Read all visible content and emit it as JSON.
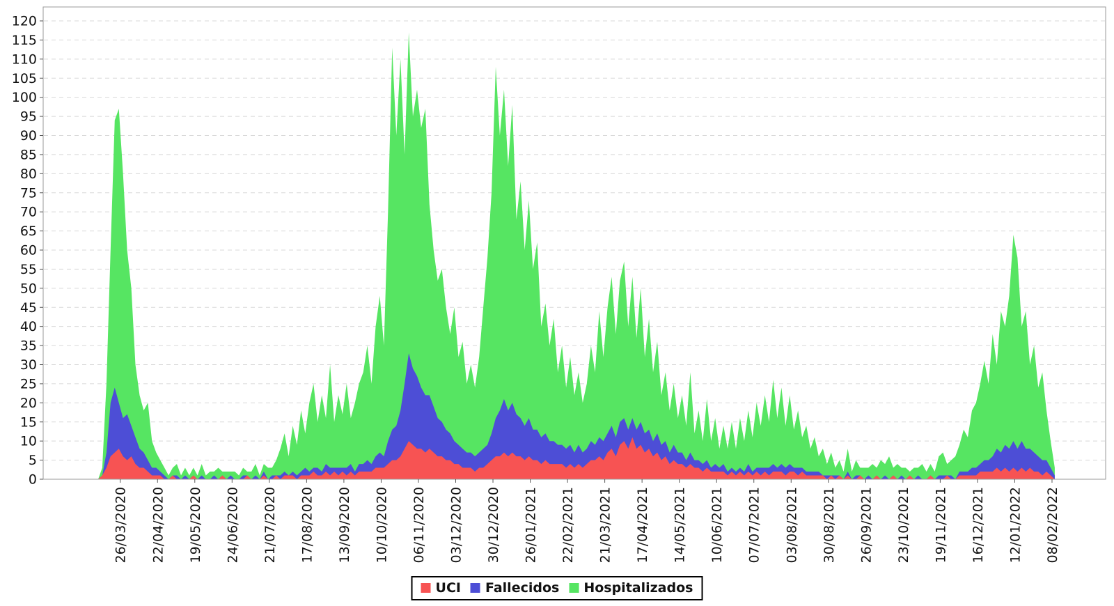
{
  "chart_data": {
    "type": "area",
    "stacked": true,
    "title": "",
    "xlabel": "",
    "ylabel": "",
    "ylim": [
      0,
      123.7
    ],
    "y_ticks": [
      0,
      5,
      10,
      15,
      20,
      25,
      30,
      35,
      40,
      45,
      50,
      55,
      60,
      65,
      70,
      75,
      80,
      85,
      90,
      95,
      100,
      105,
      110,
      115,
      120
    ],
    "grid": "horizontal-dashed",
    "legend_position": "bottom",
    "x_step_days": 3,
    "x_tick_indices": [
      16,
      43,
      70,
      97,
      124,
      151,
      178,
      205,
      232,
      259,
      286,
      313,
      340,
      367,
      394,
      421,
      448,
      475,
      502,
      529,
      556,
      583,
      610,
      637,
      664,
      691
    ],
    "x_tick_labels": [
      "26/03/2020",
      "22/04/2020",
      "19/05/2020",
      "24/06/2020",
      "21/07/2020",
      "17/08/2020",
      "13/09/2020",
      "10/10/2020",
      "06/11/2020",
      "03/12/2020",
      "30/12/2020",
      "26/01/2021",
      "22/02/2021",
      "21/03/2021",
      "17/04/2021",
      "14/05/2021",
      "10/06/2021",
      "07/07/2021",
      "03/08/2021",
      "30/08/2021",
      "26/09/2021",
      "23/10/2021",
      "19/11/2021",
      "16/12/2021",
      "12/01/2022",
      "08/02/2022"
    ],
    "series": [
      {
        "name": "UCI",
        "color": "#f75353",
        "values": [
          0,
          1,
          3,
          6,
          7,
          8,
          6,
          5,
          6,
          4,
          3,
          3,
          2,
          1,
          1,
          1,
          0,
          0,
          1,
          0,
          0,
          0,
          0,
          1,
          0,
          0,
          0,
          0,
          0,
          0,
          1,
          0,
          0,
          0,
          0,
          0,
          1,
          0,
          0,
          0,
          1,
          0,
          0,
          1,
          0,
          1,
          1,
          1,
          0,
          1,
          1,
          1,
          2,
          1,
          1,
          2,
          1,
          2,
          1,
          2,
          1,
          2,
          1,
          2,
          2,
          2,
          2,
          3,
          3,
          3,
          4,
          5,
          5,
          6,
          8,
          10,
          9,
          8,
          8,
          7,
          8,
          7,
          6,
          6,
          5,
          5,
          4,
          4,
          3,
          3,
          3,
          2,
          3,
          3,
          4,
          5,
          6,
          6,
          7,
          6,
          7,
          6,
          6,
          5,
          6,
          5,
          5,
          4,
          5,
          4,
          4,
          4,
          4,
          3,
          4,
          3,
          4,
          3,
          4,
          5,
          5,
          6,
          5,
          7,
          8,
          6,
          9,
          10,
          8,
          11,
          8,
          9,
          7,
          8,
          6,
          7,
          5,
          6,
          4,
          5,
          4,
          4,
          3,
          4,
          3,
          3,
          2,
          3,
          2,
          2,
          2,
          2,
          1,
          2,
          1,
          2,
          1,
          2,
          1,
          2,
          1,
          2,
          1,
          2,
          2,
          2,
          1,
          2,
          2,
          1,
          2,
          1,
          1,
          1,
          1,
          1,
          0,
          1,
          0,
          1,
          0,
          1,
          0,
          0,
          1,
          0,
          0,
          0,
          1,
          0,
          0,
          0,
          1,
          0,
          0,
          0,
          1,
          0,
          0,
          0,
          0,
          1,
          0,
          0,
          0,
          1,
          0,
          0,
          1,
          1,
          1,
          1,
          1,
          2,
          2,
          2,
          2,
          3,
          2,
          3,
          2,
          3,
          2,
          3,
          2,
          3,
          2,
          2,
          1,
          2,
          1,
          0
        ]
      },
      {
        "name": "Fallecidos",
        "color": "#4d4ed6",
        "values": [
          0,
          0,
          4,
          14,
          17,
          12,
          10,
          12,
          8,
          7,
          5,
          4,
          3,
          2,
          2,
          1,
          1,
          0,
          0,
          1,
          0,
          1,
          0,
          0,
          0,
          1,
          0,
          0,
          1,
          0,
          0,
          0,
          1,
          0,
          0,
          1,
          0,
          0,
          1,
          0,
          1,
          0,
          1,
          0,
          1,
          1,
          0,
          1,
          1,
          1,
          2,
          1,
          1,
          2,
          1,
          2,
          2,
          1,
          2,
          1,
          2,
          2,
          1,
          2,
          2,
          3,
          2,
          3,
          4,
          3,
          6,
          8,
          9,
          12,
          17,
          23,
          20,
          19,
          16,
          15,
          14,
          12,
          10,
          9,
          8,
          7,
          6,
          5,
          5,
          4,
          4,
          4,
          4,
          5,
          5,
          7,
          10,
          12,
          14,
          12,
          13,
          11,
          10,
          9,
          10,
          8,
          8,
          7,
          7,
          6,
          6,
          5,
          5,
          5,
          5,
          4,
          5,
          4,
          4,
          5,
          4,
          5,
          5,
          5,
          6,
          5,
          6,
          6,
          5,
          5,
          5,
          6,
          5,
          5,
          4,
          5,
          4,
          4,
          3,
          4,
          3,
          3,
          2,
          3,
          2,
          2,
          2,
          2,
          1,
          2,
          1,
          2,
          1,
          1,
          1,
          1,
          1,
          2,
          1,
          1,
          2,
          1,
          2,
          2,
          1,
          2,
          2,
          2,
          1,
          2,
          1,
          1,
          1,
          1,
          1,
          0,
          1,
          0,
          1,
          0,
          0,
          1,
          0,
          1,
          0,
          0,
          1,
          0,
          0,
          0,
          1,
          0,
          0,
          0,
          1,
          0,
          0,
          0,
          1,
          0,
          0,
          0,
          0,
          1,
          1,
          0,
          1,
          0,
          1,
          1,
          1,
          2,
          2,
          2,
          3,
          3,
          4,
          5,
          5,
          6,
          6,
          7,
          6,
          7,
          6,
          5,
          5,
          4,
          4,
          3,
          2,
          1
        ]
      },
      {
        "name": "Hospitalizados",
        "color": "#56e562",
        "values": [
          0,
          2,
          18,
          40,
          70,
          77,
          64,
          43,
          36,
          19,
          14,
          11,
          15,
          7,
          4,
          3,
          2,
          1,
          2,
          3,
          1,
          2,
          1,
          2,
          1,
          3,
          1,
          2,
          1,
          3,
          1,
          2,
          1,
          2,
          1,
          2,
          1,
          2,
          3,
          1,
          2,
          3,
          2,
          4,
          7,
          10,
          5,
          12,
          8,
          16,
          9,
          18,
          22,
          12,
          20,
          12,
          27,
          12,
          19,
          14,
          22,
          12,
          18,
          21,
          24,
          30,
          21,
          34,
          41,
          29,
          60,
          100,
          76,
          92,
          60,
          84,
          66,
          75,
          68,
          75,
          50,
          41,
          36,
          40,
          32,
          26,
          35,
          23,
          28,
          18,
          23,
          18,
          25,
          37,
          49,
          63,
          92,
          72,
          81,
          64,
          78,
          51,
          62,
          46,
          57,
          42,
          49,
          29,
          34,
          25,
          32,
          19,
          26,
          16,
          23,
          15,
          19,
          13,
          17,
          25,
          19,
          33,
          22,
          33,
          39,
          27,
          37,
          41,
          27,
          37,
          24,
          35,
          20,
          29,
          18,
          24,
          13,
          18,
          11,
          16,
          9,
          15,
          9,
          21,
          7,
          13,
          6,
          16,
          7,
          12,
          5,
          10,
          6,
          12,
          6,
          13,
          8,
          14,
          9,
          17,
          11,
          19,
          12,
          22,
          13,
          20,
          11,
          18,
          10,
          15,
          8,
          12,
          6,
          9,
          4,
          7,
          3,
          6,
          2,
          4,
          2,
          6,
          2,
          4,
          2,
          3,
          2,
          4,
          2,
          5,
          3,
          6,
          2,
          4,
          2,
          3,
          1,
          3,
          2,
          4,
          2,
          3,
          2,
          5,
          6,
          3,
          4,
          6,
          7,
          11,
          9,
          15,
          17,
          21,
          26,
          20,
          32,
          22,
          37,
          31,
          40,
          54,
          50,
          30,
          36,
          22,
          28,
          18,
          23,
          13,
          7,
          2
        ]
      }
    ]
  },
  "legend": {
    "items": [
      {
        "label": "UCI",
        "color": "#f75353"
      },
      {
        "label": "Fallecidos",
        "color": "#4d4ed6"
      },
      {
        "label": "Hospitalizados",
        "color": "#56e562"
      }
    ]
  },
  "colors": {
    "grid": "#d8d8d8",
    "plot_border": "#999999",
    "tick": "#555555",
    "tick_label": "#111111",
    "background": "#ffffff"
  }
}
